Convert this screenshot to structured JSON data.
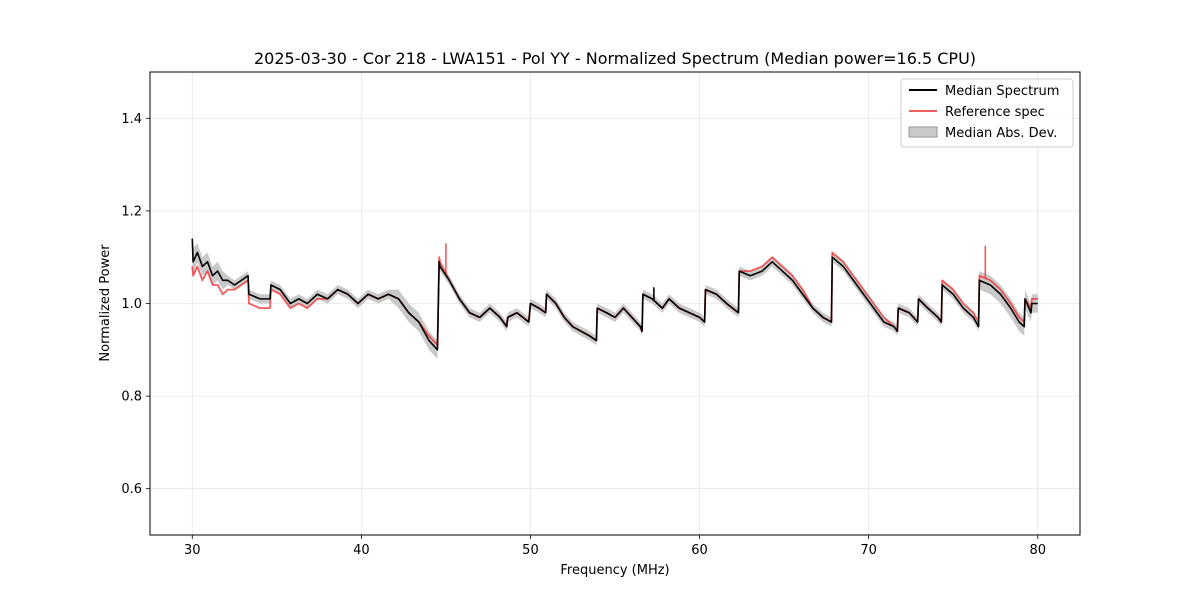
{
  "chart_data": {
    "type": "line",
    "title": "2025-03-30 - Cor 218 - LWA151 - Pol YY - Normalized Spectrum (Median power=16.5 CPU)",
    "xlabel": "Frequency (MHz)",
    "ylabel": "Normalized Power",
    "xlim": [
      27.5,
      82.5
    ],
    "ylim": [
      0.5,
      1.5
    ],
    "xticks": [
      30,
      40,
      50,
      60,
      70,
      80
    ],
    "yticks": [
      0.6,
      0.8,
      1.0,
      1.2,
      1.4
    ],
    "xtick_labels": [
      "30",
      "40",
      "50",
      "60",
      "70",
      "80"
    ],
    "ytick_labels": [
      "0.6",
      "0.8",
      "1.0",
      "1.2",
      "1.4"
    ],
    "grid": true,
    "legend_position": "top-right",
    "legend": [
      "Median Spectrum",
      "Reference spec",
      "Median Abs. Dev."
    ],
    "colors": {
      "median": "#000000",
      "reference": "#ee3333",
      "mad": "#bbbbbb"
    },
    "x": [
      30.0,
      30.05,
      30.3,
      30.6,
      30.9,
      31.2,
      31.5,
      31.8,
      32.1,
      32.5,
      32.9,
      33.3,
      33.35,
      34.0,
      34.6,
      34.65,
      35.2,
      35.8,
      36.3,
      36.8,
      37.4,
      38.0,
      38.6,
      39.2,
      39.8,
      40.4,
      41.0,
      41.6,
      42.2,
      42.8,
      43.4,
      44.0,
      44.5,
      44.6,
      44.65,
      45.2,
      45.8,
      46.4,
      47.0,
      47.6,
      48.2,
      48.6,
      48.65,
      49.2,
      49.9,
      50.0,
      50.5,
      50.9,
      50.95,
      51.5,
      52.0,
      52.5,
      53.0,
      53.5,
      53.9,
      53.95,
      54.5,
      55.0,
      55.5,
      56.0,
      56.5,
      56.6,
      56.65,
      57.2,
      57.8,
      58.2,
      58.8,
      59.4,
      60.0,
      60.3,
      60.35,
      61.0,
      61.6,
      62.3,
      62.35,
      63.0,
      63.7,
      64.3,
      64.9,
      65.5,
      66.1,
      66.7,
      67.3,
      67.8,
      67.85,
      68.5,
      69.1,
      69.7,
      70.3,
      70.9,
      71.5,
      71.7,
      71.75,
      72.4,
      72.9,
      72.95,
      73.5,
      74.1,
      74.3,
      74.35,
      75.0,
      75.6,
      76.2,
      76.5,
      76.55,
      77.2,
      77.8,
      78.4,
      78.9,
      79.2,
      79.25,
      79.6,
      79.65,
      80.0
    ],
    "series": [
      {
        "name": "Median Spectrum",
        "values": [
          1.14,
          1.09,
          1.11,
          1.08,
          1.09,
          1.06,
          1.07,
          1.05,
          1.05,
          1.04,
          1.05,
          1.06,
          1.02,
          1.01,
          1.01,
          1.04,
          1.03,
          1.0,
          1.01,
          1.0,
          1.02,
          1.01,
          1.03,
          1.02,
          1.0,
          1.02,
          1.01,
          1.02,
          1.01,
          0.98,
          0.96,
          0.92,
          0.9,
          1.09,
          1.08,
          1.05,
          1.01,
          0.98,
          0.97,
          0.99,
          0.97,
          0.95,
          0.97,
          0.98,
          0.96,
          1.0,
          0.99,
          0.98,
          1.02,
          1.0,
          0.97,
          0.95,
          0.94,
          0.93,
          0.92,
          0.99,
          0.98,
          0.97,
          0.99,
          0.97,
          0.95,
          0.94,
          1.02,
          1.01,
          0.99,
          1.01,
          0.99,
          0.98,
          0.97,
          0.96,
          1.03,
          1.02,
          1.0,
          0.98,
          1.07,
          1.06,
          1.07,
          1.09,
          1.07,
          1.05,
          1.02,
          0.99,
          0.97,
          0.96,
          1.1,
          1.08,
          1.05,
          1.02,
          0.99,
          0.96,
          0.95,
          0.94,
          0.99,
          0.98,
          0.96,
          1.01,
          0.99,
          0.97,
          0.96,
          1.04,
          1.02,
          0.99,
          0.97,
          0.95,
          1.05,
          1.04,
          1.02,
          0.99,
          0.96,
          0.95,
          1.01,
          0.98,
          1.0,
          1.0
        ]
      },
      {
        "name": "Reference spec",
        "values": [
          1.08,
          1.06,
          1.08,
          1.05,
          1.07,
          1.04,
          1.04,
          1.02,
          1.03,
          1.03,
          1.04,
          1.05,
          1.0,
          0.99,
          0.99,
          1.03,
          1.02,
          0.99,
          1.0,
          0.99,
          1.01,
          1.01,
          1.03,
          1.02,
          1.0,
          1.02,
          1.01,
          1.02,
          1.01,
          0.98,
          0.96,
          0.93,
          0.91,
          1.1,
          1.09,
          1.05,
          1.01,
          0.98,
          0.97,
          0.99,
          0.97,
          0.95,
          0.97,
          0.98,
          0.96,
          1.0,
          0.99,
          0.98,
          1.02,
          1.0,
          0.97,
          0.95,
          0.94,
          0.93,
          0.92,
          0.99,
          0.98,
          0.97,
          0.99,
          0.97,
          0.95,
          0.94,
          1.02,
          1.01,
          0.99,
          1.01,
          0.99,
          0.98,
          0.97,
          0.96,
          1.03,
          1.02,
          1.0,
          0.98,
          1.07,
          1.07,
          1.08,
          1.1,
          1.08,
          1.06,
          1.03,
          0.99,
          0.97,
          0.96,
          1.11,
          1.09,
          1.06,
          1.03,
          1.0,
          0.97,
          0.95,
          0.94,
          0.99,
          0.98,
          0.96,
          1.01,
          0.99,
          0.97,
          0.96,
          1.05,
          1.03,
          1.0,
          0.98,
          0.96,
          1.06,
          1.05,
          1.03,
          1.0,
          0.97,
          0.96,
          1.01,
          0.99,
          1.01,
          1.01
        ]
      },
      {
        "name": "Median Abs. Dev.",
        "lower": [
          1.1,
          1.06,
          1.09,
          1.06,
          1.07,
          1.04,
          1.05,
          1.03,
          1.04,
          1.03,
          1.04,
          1.05,
          1.01,
          1.0,
          1.0,
          1.03,
          1.02,
          0.99,
          1.0,
          0.99,
          1.01,
          1.0,
          1.02,
          1.01,
          0.99,
          1.01,
          1.0,
          1.01,
          0.99,
          0.96,
          0.94,
          0.9,
          0.88,
          1.08,
          1.07,
          1.04,
          1.0,
          0.97,
          0.96,
          0.98,
          0.96,
          0.94,
          0.96,
          0.97,
          0.95,
          0.99,
          0.98,
          0.97,
          1.01,
          0.99,
          0.96,
          0.94,
          0.93,
          0.92,
          0.91,
          0.98,
          0.97,
          0.96,
          0.98,
          0.96,
          0.94,
          0.93,
          1.01,
          1.0,
          0.98,
          1.0,
          0.98,
          0.97,
          0.96,
          0.95,
          1.02,
          1.01,
          0.99,
          0.97,
          1.06,
          1.05,
          1.06,
          1.08,
          1.06,
          1.04,
          1.01,
          0.98,
          0.96,
          0.95,
          1.09,
          1.07,
          1.04,
          1.01,
          0.98,
          0.95,
          0.94,
          0.93,
          0.98,
          0.97,
          0.95,
          1.0,
          0.98,
          0.96,
          0.95,
          1.03,
          1.01,
          0.98,
          0.96,
          0.94,
          1.03,
          1.02,
          1.0,
          0.97,
          0.94,
          0.93,
          0.99,
          0.96,
          0.98,
          0.98
        ],
        "upper": [
          1.16,
          1.12,
          1.13,
          1.1,
          1.11,
          1.08,
          1.09,
          1.07,
          1.06,
          1.05,
          1.06,
          1.07,
          1.03,
          1.02,
          1.02,
          1.05,
          1.04,
          1.01,
          1.02,
          1.01,
          1.03,
          1.02,
          1.04,
          1.03,
          1.01,
          1.03,
          1.02,
          1.03,
          1.03,
          1.0,
          0.98,
          0.94,
          0.92,
          1.1,
          1.09,
          1.06,
          1.02,
          0.99,
          0.98,
          1.0,
          0.98,
          0.96,
          0.98,
          0.99,
          0.97,
          1.01,
          1.0,
          0.99,
          1.03,
          1.01,
          0.98,
          0.96,
          0.95,
          0.94,
          0.93,
          1.0,
          0.99,
          0.98,
          1.0,
          0.98,
          0.96,
          0.95,
          1.03,
          1.02,
          1.0,
          1.02,
          1.0,
          0.99,
          0.98,
          0.97,
          1.04,
          1.03,
          1.01,
          0.99,
          1.08,
          1.07,
          1.08,
          1.1,
          1.08,
          1.06,
          1.03,
          1.0,
          0.98,
          0.97,
          1.11,
          1.09,
          1.06,
          1.03,
          1.0,
          0.97,
          0.96,
          0.95,
          1.0,
          0.99,
          0.97,
          1.02,
          1.0,
          0.98,
          0.97,
          1.05,
          1.03,
          1.0,
          0.98,
          0.96,
          1.07,
          1.06,
          1.04,
          1.01,
          0.98,
          0.97,
          1.03,
          1.0,
          1.02,
          1.02
        ]
      }
    ],
    "annotations": [
      {
        "series": "Reference spec",
        "x": 45.0,
        "y": 1.13,
        "note": "spike"
      },
      {
        "series": "Median Spectrum",
        "x": 57.3,
        "y": 1.035,
        "note": "spike"
      },
      {
        "series": "Reference spec",
        "x": 76.9,
        "y": 1.125,
        "note": "spike"
      }
    ]
  }
}
